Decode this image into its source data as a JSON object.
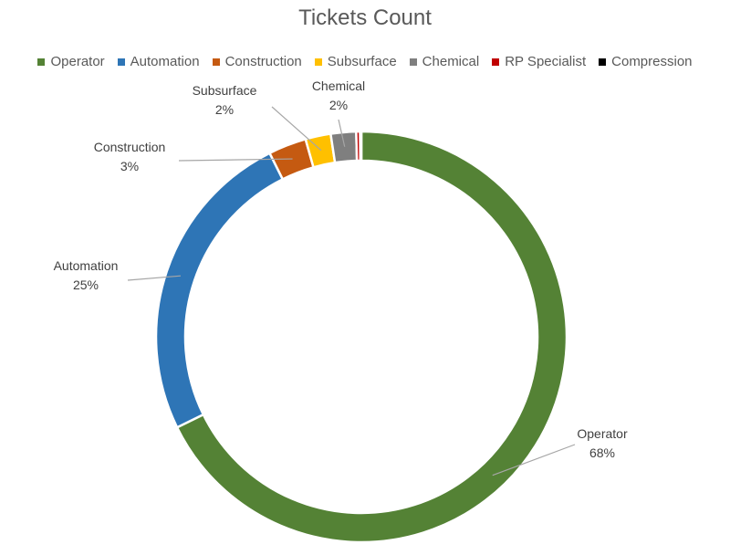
{
  "chart_data": {
    "type": "pie",
    "variant": "donut",
    "title": "Tickets Count",
    "legend_position": "top",
    "slices": [
      {
        "name": "Operator",
        "value": 68,
        "label": "68%",
        "color": "#548235"
      },
      {
        "name": "Automation",
        "value": 25,
        "label": "25%",
        "color": "#2E75B6"
      },
      {
        "name": "Construction",
        "value": 3,
        "label": "3%",
        "color": "#C55A11"
      },
      {
        "name": "Subsurface",
        "value": 2,
        "label": "2%",
        "color": "#FFC000"
      },
      {
        "name": "Chemical",
        "value": 2,
        "label": "2%",
        "color": "#7F7F7F"
      },
      {
        "name": "RP Specialist",
        "value": 0.3,
        "label": "",
        "color": "#C00000"
      },
      {
        "name": "Compression",
        "value": 0.1,
        "label": "",
        "color": "#000000"
      }
    ]
  }
}
